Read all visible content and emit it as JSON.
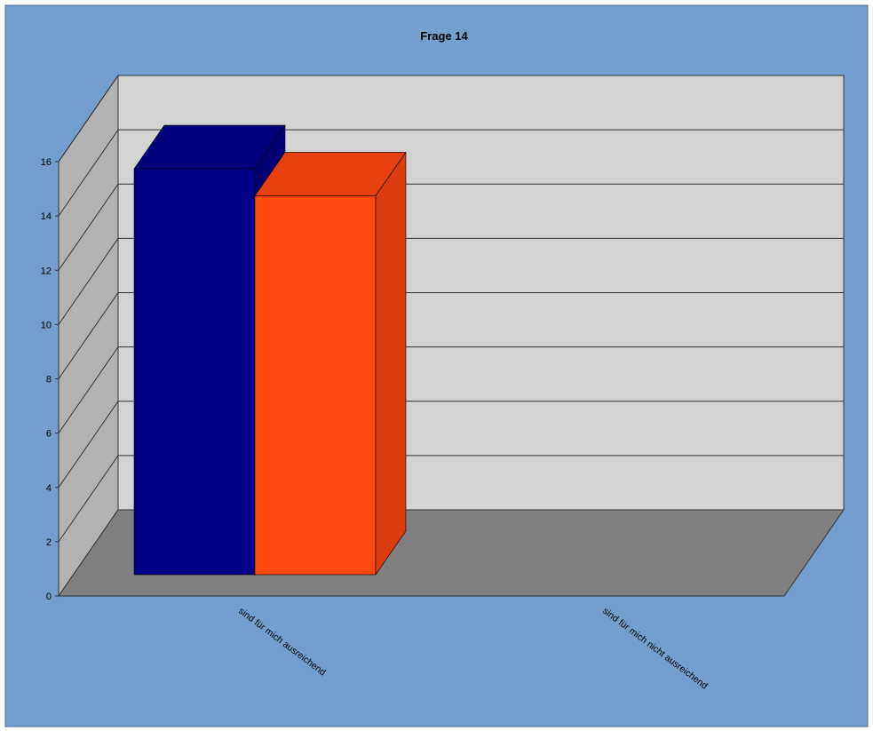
{
  "chart_data": {
    "type": "bar",
    "title": "Frage 14",
    "categories": [
      "sind für mich ausreichend",
      "sind für mich nicht ausreichend"
    ],
    "series": [
      {
        "values": [
          15,
          0
        ],
        "color": "#000088"
      },
      {
        "values": [
          14,
          0
        ],
        "color": "#ff4710"
      }
    ],
    "yticks": [
      "0",
      "2",
      "4",
      "6",
      "8",
      "10",
      "12",
      "14",
      "16"
    ],
    "ylim": [
      0,
      16
    ],
    "grid": true,
    "legend": "none",
    "render": "3d"
  },
  "colors": {
    "background": "#729fcf",
    "back_wall": "#d3d3d3",
    "side_wall": "#b2b2b2",
    "floor": "#808080",
    "border": "#4f6d8f"
  }
}
